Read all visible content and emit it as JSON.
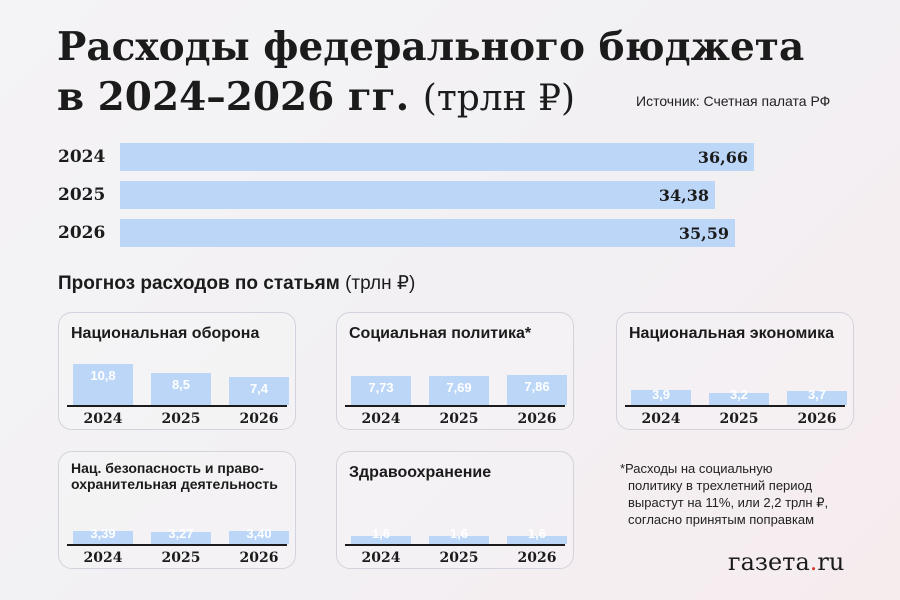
{
  "title": {
    "line1": "Расходы федерального бюджета",
    "line2": "в 2024–2026 гг.",
    "unit": "(трлн ₽)"
  },
  "source": "Источник: Счетная палата РФ",
  "subtitle": {
    "text": "Прогноз расходов по статьям",
    "unit": "(трлн ₽)"
  },
  "note": [
    "*Расходы на социальную",
    "политику в трехлетний период",
    "вырастут на 11%, или 2,2 трлн ₽,",
    "согласно принятым поправкам"
  ],
  "logo": {
    "text": "газета",
    "dot": ".",
    "suffix": "ru"
  },
  "colors": {
    "bar": "#bcd6f8",
    "text": "#1b1b1b",
    "accent": "#d23a2c"
  },
  "chart_data": [
    {
      "type": "bar",
      "orientation": "horizontal",
      "categories": [
        "2024",
        "2025",
        "2026"
      ],
      "values": [
        36.66,
        34.38,
        35.59
      ],
      "value_labels": [
        "36,66",
        "34,38",
        "35,59"
      ],
      "title": "Расходы федерального бюджета в 2024–2026 гг. (трлн ₽)"
    },
    {
      "type": "bar",
      "title": "Национальная оборона",
      "categories": [
        "2024",
        "2025",
        "2026"
      ],
      "values": [
        10.8,
        8.5,
        7.4
      ],
      "value_labels": [
        "10,8",
        "8,5",
        "7,4"
      ]
    },
    {
      "type": "bar",
      "title": "Социальная политика*",
      "categories": [
        "2024",
        "2025",
        "2026"
      ],
      "values": [
        7.73,
        7.69,
        7.86
      ],
      "value_labels": [
        "7,73",
        "7,69",
        "7,86"
      ]
    },
    {
      "type": "bar",
      "title": "Национальная экономика",
      "categories": [
        "2024",
        "2025",
        "2026"
      ],
      "values": [
        3.9,
        3.2,
        3.7
      ],
      "value_labels": [
        "3,9",
        "3,2",
        "3,7"
      ]
    },
    {
      "type": "bar",
      "title": "Нац. безопасность и право-охранительная деятельность",
      "title_lines": [
        "Нац. безопасность и право-",
        "охранительная деятельность"
      ],
      "categories": [
        "2024",
        "2025",
        "2026"
      ],
      "values": [
        3.39,
        3.27,
        3.4
      ],
      "value_labels": [
        "3,39",
        "3,27",
        "3,40"
      ]
    },
    {
      "type": "bar",
      "title": "Здравоохранение",
      "categories": [
        "2024",
        "2025",
        "2026"
      ],
      "values": [
        1.6,
        1.6,
        1.6
      ],
      "value_labels": [
        "1,6",
        "1,6",
        "1,6"
      ]
    }
  ]
}
